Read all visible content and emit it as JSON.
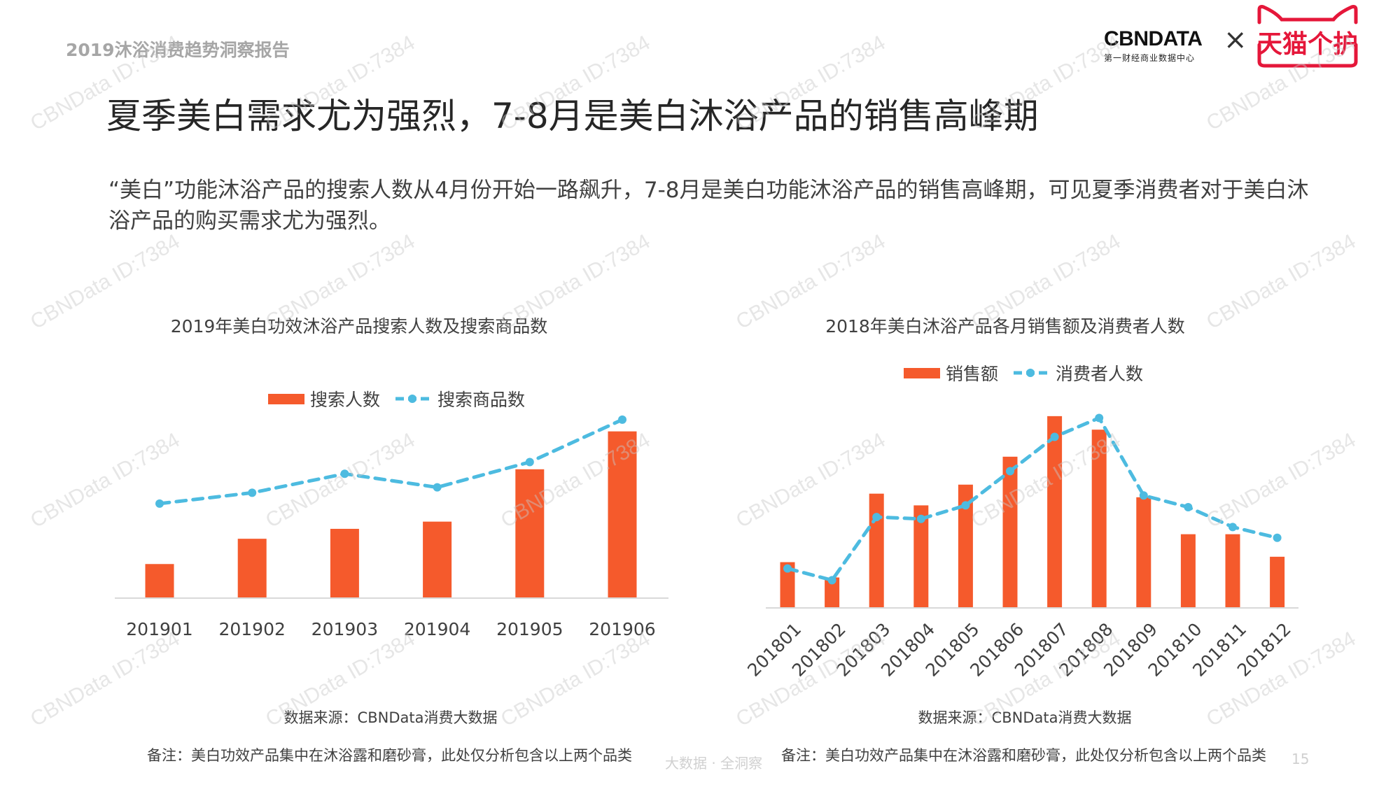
{
  "header": {
    "report_title": "2019沐浴消费趋势洞察报告"
  },
  "logos": {
    "cbndata": "CBNDATA",
    "cbndata_sub": "第一财经商业数据中心",
    "separator": "×",
    "tmall": "天猫个护"
  },
  "title": "夏季美白需求尤为强烈，7-8月是美白沐浴产品的销售高峰期",
  "body": "“美白”功能沐浴产品的搜索人数从4月份开始一路飙升，7-8月是美白功能沐浴产品的销售高峰期，可见夏季消费者对于美白沐浴产品的购买需求尤为强烈。",
  "watermark": "CBNData ID:7384",
  "colors": {
    "bar": "#F55A2C",
    "line": "#4DBBE0",
    "axis": "#d9d9d9"
  },
  "chart_data": [
    {
      "type": "bar+line",
      "title": "2019年美白功效沐浴产品搜索人数及搜索商品数",
      "categories": [
        "201901",
        "201902",
        "201903",
        "201904",
        "201905",
        "201906"
      ],
      "series": [
        {
          "name": "搜索人数",
          "type": "bar",
          "values": [
            37,
            65,
            76,
            84,
            142,
            184
          ]
        },
        {
          "name": "搜索商品数",
          "type": "line",
          "style": "dashed-with-markers",
          "values": [
            104,
            116,
            137,
            122,
            150,
            197
          ]
        }
      ],
      "ylim": [
        0,
        200
      ],
      "y_axis_shown": false,
      "grid": false,
      "legend": "top",
      "source": "数据来源：CBNData消费大数据",
      "note": "备注：美白功效产品集中在沐浴露和磨砂膏，此处仅分析包含以上两个品类"
    },
    {
      "type": "bar+line",
      "title": "2018年美白沐浴产品各月销售额及消费者人数",
      "categories": [
        "201801",
        "201802",
        "201803",
        "201804",
        "201805",
        "201806",
        "201807",
        "201808",
        "201809",
        "201810",
        "201811",
        "201812"
      ],
      "series": [
        {
          "name": "销售额",
          "type": "bar",
          "values": [
            50,
            33,
            126,
            113,
            136,
            167,
            212,
            197,
            122,
            81,
            81,
            56
          ]
        },
        {
          "name": "消费者人数",
          "type": "line",
          "style": "dashed-with-markers",
          "values": [
            43,
            30,
            100,
            98,
            113,
            151,
            189,
            210,
            124,
            111,
            89,
            77
          ]
        }
      ],
      "ylim": [
        0,
        215
      ],
      "y_axis_shown": false,
      "grid": false,
      "legend": "top",
      "x_tick_rotation": "-45deg",
      "source": "数据来源：CBNData消费大数据",
      "note": "备注：美白功效产品集中在沐浴露和磨砂膏，此处仅分析包含以上两个品类"
    }
  ],
  "footer": {
    "slogan": "大数据 · 全洞察",
    "page_number": "15"
  }
}
